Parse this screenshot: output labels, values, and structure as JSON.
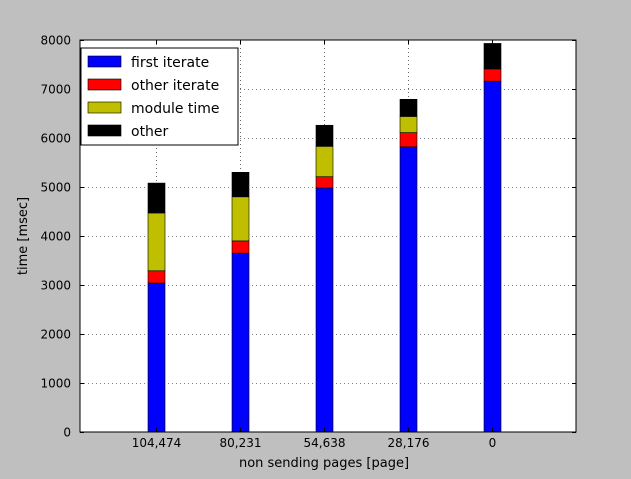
{
  "chart_data": {
    "type": "bar",
    "stacked": true,
    "categories": [
      "104,474",
      "80,231",
      "54,638",
      "28,176",
      "0"
    ],
    "series": [
      {
        "name": "first iterate",
        "color": "#0000ff",
        "values": [
          3040,
          3650,
          4980,
          5820,
          7160
        ]
      },
      {
        "name": "other iterate",
        "color": "#ff0000",
        "values": [
          250,
          250,
          230,
          290,
          250
        ]
      },
      {
        "name": "module time",
        "color": "#bfbf00",
        "values": [
          1180,
          900,
          620,
          330,
          0
        ]
      },
      {
        "name": "other",
        "color": "#000000",
        "values": [
          610,
          500,
          430,
          350,
          520
        ]
      }
    ],
    "title": "",
    "xlabel": "non sending pages [page]",
    "ylabel": "time [msec]",
    "ylim": [
      0,
      8000
    ],
    "yticks": [
      "0",
      "1000",
      "2000",
      "3000",
      "4000",
      "5000",
      "6000",
      "7000",
      "8000"
    ],
    "grid": true,
    "legend_position": "top-left"
  }
}
